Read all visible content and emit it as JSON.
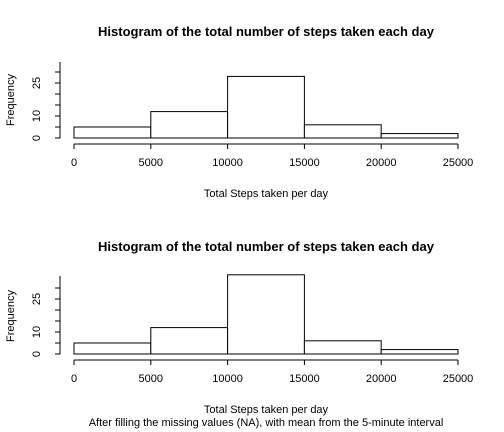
{
  "chart_data": [
    {
      "type": "bar",
      "title": "Histogram of the total number of steps taken each day",
      "xlabel": "Total Steps taken per day",
      "subtitle": "",
      "ylabel": "Frequency",
      "bins": [
        [
          0,
          5000
        ],
        [
          5000,
          10000
        ],
        [
          10000,
          15000
        ],
        [
          15000,
          20000
        ],
        [
          20000,
          25000
        ]
      ],
      "values": [
        5,
        12,
        28,
        6,
        2
      ],
      "x_ticks": [
        "0",
        "5000",
        "10000",
        "15000",
        "20000",
        "25000"
      ],
      "y_ticks": [
        "0",
        "10",
        "25"
      ],
      "xlim": [
        0,
        25000
      ],
      "ylim": [
        0,
        30
      ],
      "grid": false
    },
    {
      "type": "bar",
      "title": "Histogram of the total number of steps taken each day",
      "xlabel": "Total Steps taken per day",
      "subtitle": "After filling the missing values (NA), with mean from the 5-minute interval",
      "ylabel": "Frequency",
      "bins": [
        [
          0,
          5000
        ],
        [
          5000,
          10000
        ],
        [
          10000,
          15000
        ],
        [
          15000,
          20000
        ],
        [
          20000,
          25000
        ]
      ],
      "values": [
        5,
        12,
        36,
        6,
        2
      ],
      "x_ticks": [
        "0",
        "5000",
        "10000",
        "15000",
        "20000",
        "25000"
      ],
      "y_ticks": [
        "0",
        "10",
        "25"
      ],
      "xlim": [
        0,
        25000
      ],
      "ylim": [
        0,
        36
      ],
      "grid": false
    }
  ]
}
